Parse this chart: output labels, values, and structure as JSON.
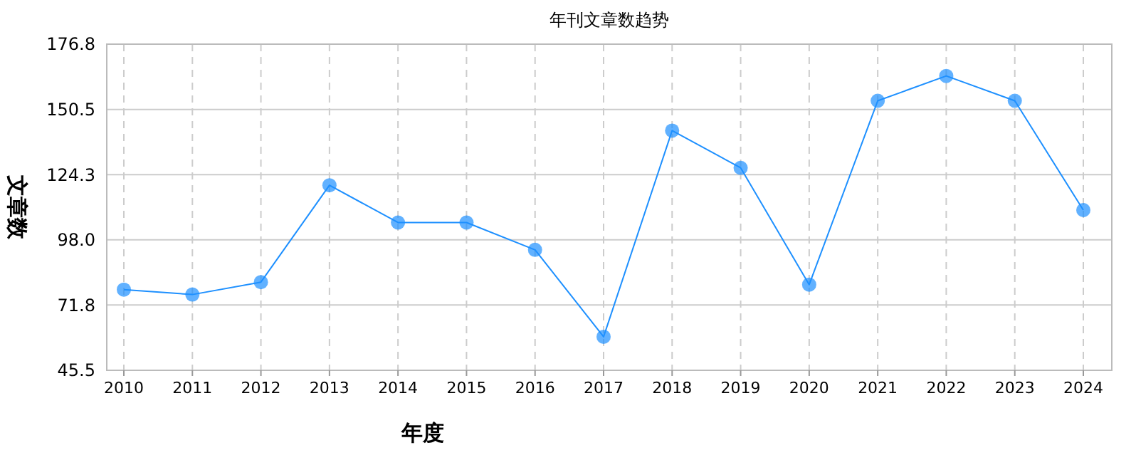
{
  "chart_data": {
    "type": "line",
    "title": "年刊文章数趋势",
    "xlabel": "年度",
    "ylabel": "文章数",
    "categories": [
      "2010",
      "2011",
      "2012",
      "2013",
      "2014",
      "2015",
      "2016",
      "2017",
      "2018",
      "2019",
      "2020",
      "2021",
      "2022",
      "2023",
      "2024"
    ],
    "series": [
      {
        "color": "#1e90ff",
        "values": [
          78,
          76,
          81,
          120,
          105,
          105,
          94,
          59,
          142,
          127,
          80,
          154,
          164,
          154,
          110
        ]
      }
    ],
    "ylim": [
      45.5,
      176.8
    ],
    "yticks": [
      45.5,
      71.8,
      {
        "value": 98,
        "label": "98.0"
      },
      124.3,
      150.5,
      176.8
    ],
    "grid": true,
    "marker": "circle",
    "line_style": "solid"
  }
}
